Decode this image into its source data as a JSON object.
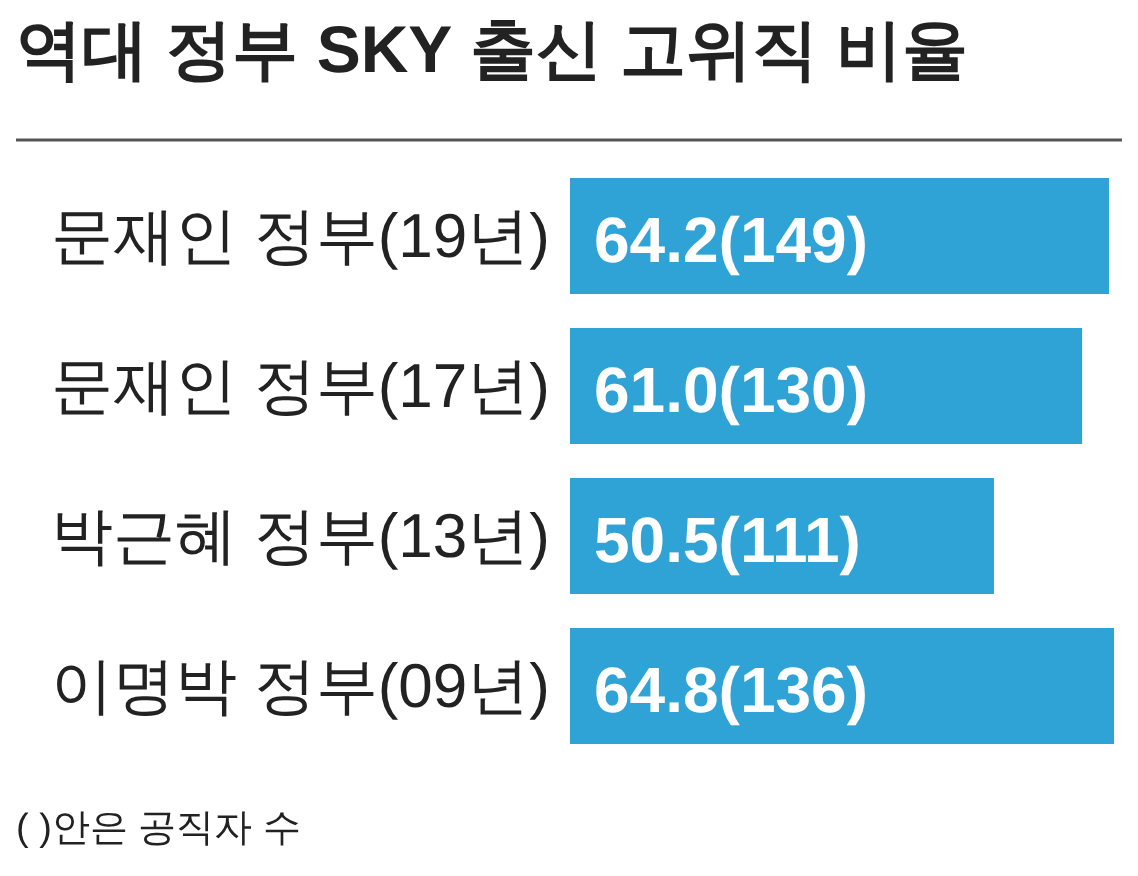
{
  "chart_data": {
    "type": "bar",
    "orientation": "horizontal",
    "title": "역대 정부 SKY 출신 고위직 비율",
    "categories": [
      "문재인 정부(19년)",
      "문재인 정부(17년)",
      "박근혜 정부(13년)",
      "이명박 정부(09년)"
    ],
    "values": [
      64.2,
      61.0,
      50.5,
      64.8
    ],
    "value_labels": [
      "64.2(149)",
      "61.0(130)",
      "50.5(111)",
      "64.8(136)"
    ],
    "color": "#2fa3d6",
    "annotations": [
      "( )안은 공직자 수"
    ]
  }
}
